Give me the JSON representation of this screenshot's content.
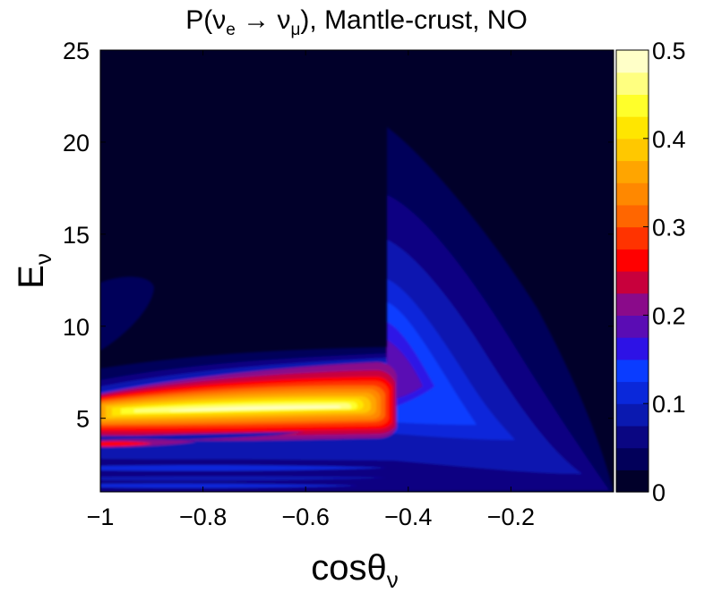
{
  "chart_data": {
    "type": "heatmap",
    "subtype": "filled-contour",
    "title": {
      "prefix": "P(",
      "nu": "ν",
      "sub1": "e",
      "arrow": " → ",
      "sub2": "μ",
      "suffix": "), Mantle-crust, NO"
    },
    "xlabel": {
      "main": "cosθ",
      "sub": "ν"
    },
    "ylabel": {
      "main": "E",
      "sub": "ν"
    },
    "xlim": [
      -1,
      0
    ],
    "ylim": [
      1,
      25
    ],
    "xticks": [
      -1,
      -0.8,
      -0.6,
      -0.4,
      -0.2
    ],
    "xtick_labels": [
      "−1",
      "−0.8",
      "−0.6",
      "−0.4",
      "−0.2"
    ],
    "yticks": [
      5,
      10,
      15,
      20,
      25
    ],
    "ytick_labels": [
      "5",
      "10",
      "15",
      "20",
      "25"
    ],
    "colorbar": {
      "range": [
        0,
        0.5
      ],
      "step": 0.025,
      "ticks": [
        0,
        0.1,
        0.2,
        0.3,
        0.4,
        0.5
      ],
      "tick_labels": [
        "0",
        "0.1",
        "0.2",
        "0.3",
        "0.4",
        "0.5"
      ],
      "colors": [
        "#01002a",
        "#02005a",
        "#0a0682",
        "#0a19b0",
        "#0a28da",
        "#0a3cff",
        "#2d12e6",
        "#5a0cb4",
        "#8a0a8a",
        "#c8003c",
        "#ff0000",
        "#ff3300",
        "#ff6600",
        "#ff8800",
        "#ffa500",
        "#ffc800",
        "#ffe600",
        "#ffff2a",
        "#ffff80",
        "#ffffc8"
      ]
    },
    "features": [
      {
        "name": "main-resonance-band",
        "peak_probability": 0.5,
        "cos_theta_range": [
          -1,
          -0.44
        ],
        "energy_center": 5.3
      },
      {
        "name": "upper-wedge",
        "peak_probability": 0.15,
        "cos_theta_range": [
          -0.45,
          0
        ],
        "energy_max": 20.5
      },
      {
        "name": "low-energy-fringes",
        "energy_range": [
          1,
          4
        ]
      },
      {
        "name": "high-energy-blob",
        "peak_probability": 0.05,
        "cos_theta_range": [
          -1,
          -0.8
        ],
        "energy_range": [
          9,
          12.5
        ]
      }
    ]
  }
}
